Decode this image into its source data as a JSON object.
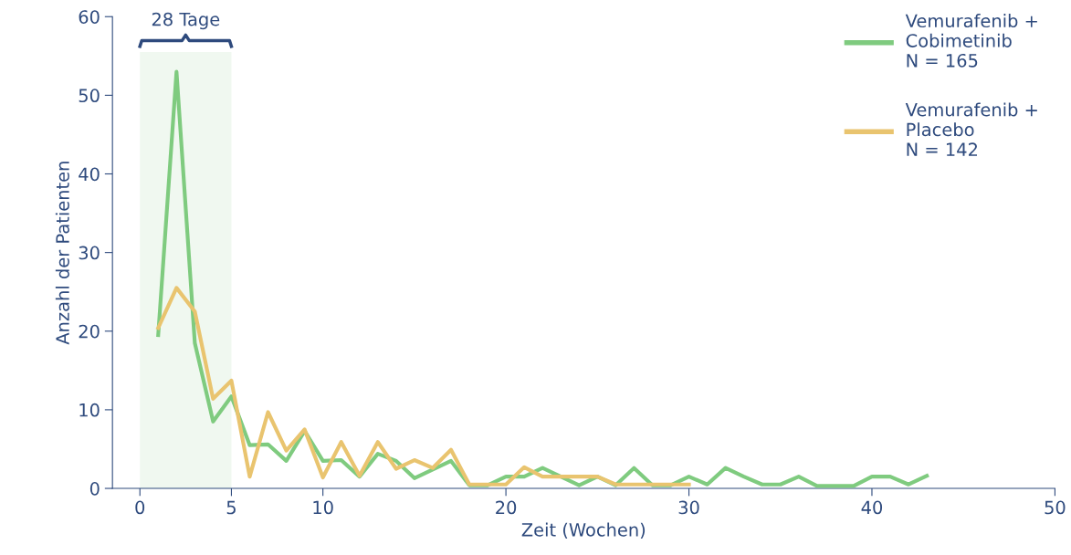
{
  "chart_data": {
    "type": "line",
    "xlabel": "Zeit (Wochen)",
    "ylabel": "Anzahl der Patienten",
    "xlim": [
      -1.5,
      50
    ],
    "xticks": [
      0,
      5,
      10,
      20,
      30,
      40,
      50
    ],
    "ylim": [
      0,
      60
    ],
    "yticks": [
      0,
      10,
      20,
      30,
      40,
      50,
      60
    ],
    "grid": false,
    "legend": "top right",
    "marker": "none",
    "line_style": "solid",
    "series": [
      {
        "name": "Vemurafenib +\nCobimetinib\nN = 165",
        "color": "#7fcb7f",
        "x": [
          1,
          2,
          3,
          4,
          5,
          6,
          7,
          8,
          9,
          10,
          11,
          12,
          13,
          14,
          15,
          16,
          17,
          18,
          19,
          20,
          21,
          22,
          23,
          24,
          25,
          26,
          27,
          28,
          29,
          30,
          31,
          32,
          33,
          34,
          35,
          36,
          37,
          38,
          39,
          40,
          41,
          42,
          43
        ],
        "values": [
          19.5,
          53,
          18.5,
          8.5,
          11.7,
          5.5,
          5.6,
          3.5,
          7.3,
          3.5,
          3.6,
          1.5,
          4.4,
          3.5,
          1.3,
          2.4,
          3.5,
          0.4,
          0.4,
          1.5,
          1.5,
          2.6,
          1.5,
          0.4,
          1.5,
          0.4,
          2.6,
          0.4,
          0.4,
          1.5,
          0.5,
          2.6,
          1.5,
          0.5,
          0.5,
          1.5,
          0.3,
          0.3,
          0.3,
          1.5,
          1.5,
          0.5,
          1.6
        ]
      },
      {
        "name": "Vemurafenib +\nPlacebo\nN = 142",
        "color": "#e9c46f",
        "x": [
          1,
          2,
          3,
          4,
          5,
          6,
          7,
          8,
          9,
          10,
          11,
          12,
          13,
          14,
          15,
          16,
          17,
          18,
          19,
          20,
          21,
          22,
          23,
          24,
          25,
          26,
          27,
          28,
          29,
          30
        ],
        "values": [
          20.4,
          25.5,
          22.5,
          11.4,
          13.7,
          1.5,
          9.7,
          4.8,
          7.5,
          1.4,
          5.9,
          1.6,
          5.9,
          2.5,
          3.6,
          2.6,
          4.9,
          0.5,
          0.5,
          0.5,
          2.7,
          1.5,
          1.5,
          1.5,
          1.5,
          0.5,
          0.5,
          0.5,
          0.5,
          0.5
        ]
      }
    ],
    "bands": [
      {
        "axis": "x",
        "from": 0,
        "to": 5,
        "label": "28 Tage",
        "color": "#f0f8f0"
      }
    ]
  }
}
